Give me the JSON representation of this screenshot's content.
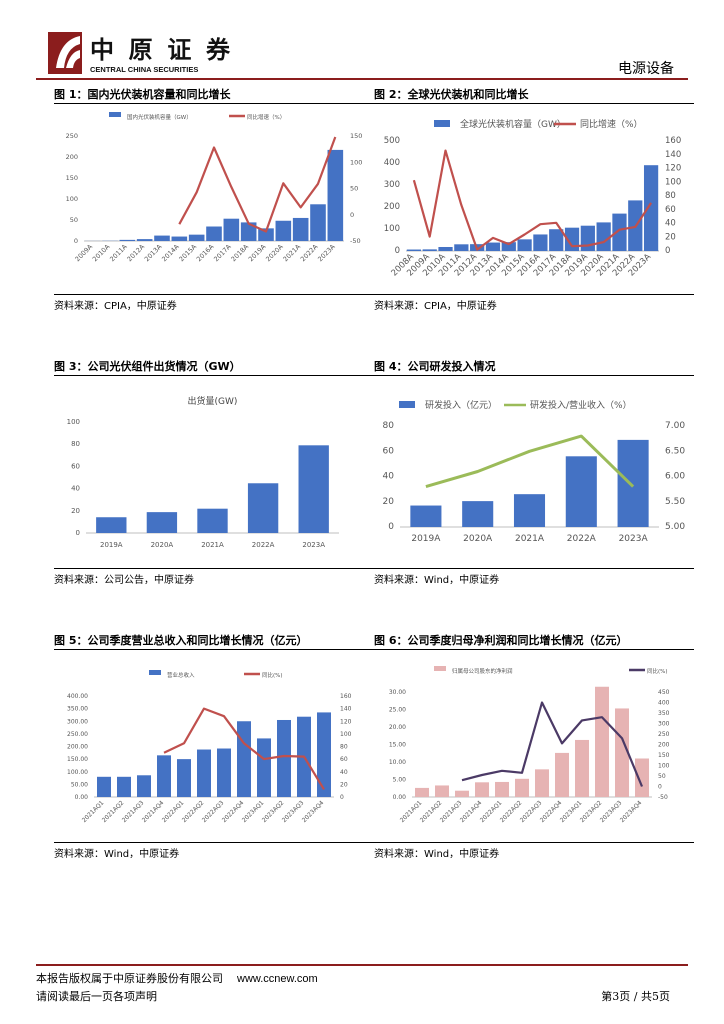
{
  "header": {
    "company_cn": "中原证券",
    "company_en": "CENTRAL CHINA SECURITIES",
    "sector": "电源设备"
  },
  "colors": {
    "brand": "#8b1d1d",
    "bar": "#4472c4",
    "line": "#c0504d",
    "green": "#9bbb59",
    "pink": "#e6b3b3",
    "purple": "#4b3a66"
  },
  "footer": {
    "copyright": "本报告版权属于中原证券股份有限公司",
    "url": "www.ccnew.com",
    "disclaimer": "请阅读最后一页各项声明",
    "page": "第3页 / 共5页"
  },
  "figures": [
    {
      "title": "图 1：国内光伏装机容量和同比增长",
      "source": "资料来源：CPIA，中原证券"
    },
    {
      "title": "图 2：全球光伏装机和同比增长",
      "source": "资料来源：CPIA，中原证券"
    },
    {
      "title": "图 3：公司光伏组件出货情况（GW）",
      "source": "资料来源：公司公告，中原证券"
    },
    {
      "title": "图 4：公司研发投入情况",
      "source": "资料来源：Wind，中原证券"
    },
    {
      "title": "图 5：公司季度营业总收入和同比增长情况（亿元）",
      "source": "资料来源：Wind，中原证券"
    },
    {
      "title": "图 6：公司季度归母净利润和同比增长情况（亿元）",
      "source": "资料来源：Wind，中原证券"
    }
  ],
  "chart_data": [
    {
      "type": "bar+line",
      "title": "",
      "legend": [
        "国内光伏装机容量（GW）",
        "同比增速（%）"
      ],
      "categories": [
        "2009A",
        "2010A",
        "2011A",
        "2012A",
        "2013A",
        "2014A",
        "2015A",
        "2016A",
        "2017A",
        "2018A",
        "2019A",
        "2020A",
        "2021A",
        "2022A",
        "2023A"
      ],
      "series": [
        {
          "name": "国内光伏装机容量（GW）",
          "axis": "left",
          "values": [
            0.2,
            0.5,
            2.7,
            4.5,
            12.9,
            10.6,
            15.1,
            34.5,
            53.1,
            44.3,
            30.1,
            48.2,
            54.9,
            87.4,
            216.9
          ]
        },
        {
          "name": "同比增速（%）",
          "axis": "right",
          "values": [
            null,
            null,
            null,
            null,
            null,
            -18,
            43,
            128,
            53,
            -17,
            -32,
            60,
            14,
            59,
            148
          ]
        }
      ],
      "ylim_left": [
        0,
        250
      ],
      "yticks_left": [
        0,
        50,
        100,
        150,
        200,
        250
      ],
      "ylim_right": [
        -50,
        150
      ],
      "yticks_right": [
        "-50",
        "0",
        "50",
        "100",
        "150"
      ]
    },
    {
      "type": "bar+line",
      "legend": [
        "全球光伏装机容量（GW）",
        "同比增速（%）"
      ],
      "categories": [
        "2008A",
        "2009A",
        "2010A",
        "2011A",
        "2012A",
        "2013A",
        "2014A",
        "2015A",
        "2016A",
        "2017A",
        "2018A",
        "2019A",
        "2020A",
        "2021A",
        "2022A",
        "2023A"
      ],
      "series": [
        {
          "name": "全球光伏装机容量（GW）",
          "axis": "left",
          "values": [
            6.7,
            7.4,
            18.2,
            30.4,
            31.1,
            38.4,
            40.1,
            53,
            75.2,
            99,
            106,
            115,
            130,
            170,
            230,
            390
          ]
        },
        {
          "name": "同比增速（%）",
          "axis": "right",
          "values": [
            103,
            21,
            146,
            67,
            2,
            19,
            10,
            24,
            39,
            41,
            7,
            8,
            13,
            31,
            35,
            70
          ]
        }
      ],
      "ylim_left": [
        0,
        500
      ],
      "yticks_left": [
        0,
        100,
        200,
        300,
        400,
        500
      ],
      "ylim_right": [
        0,
        160
      ],
      "yticks_right": [
        "0",
        "20",
        "40",
        "60",
        "80",
        "100",
        "120",
        "140",
        "160"
      ]
    },
    {
      "type": "bar",
      "title": "出货量(GW)",
      "categories": [
        "2019A",
        "2020A",
        "2021A",
        "2022A",
        "2023A"
      ],
      "values": [
        14.2,
        18.8,
        21.9,
        44.8,
        79
      ],
      "ylim": [
        0,
        100
      ],
      "yticks": [
        0,
        20,
        40,
        60,
        80,
        100
      ]
    },
    {
      "type": "bar+line",
      "legend": [
        "研发投入（亿元）",
        "研发投入/营业收入（%）"
      ],
      "categories": [
        "2019A",
        "2020A",
        "2021A",
        "2022A",
        "2023A"
      ],
      "series": [
        {
          "name": "研发投入（亿元）",
          "axis": "left",
          "values": [
            17,
            20.5,
            26,
            56,
            69
          ]
        },
        {
          "name": "研发投入/营业收入（%）",
          "axis": "right",
          "values": [
            5.8,
            6.1,
            6.5,
            6.8,
            5.8
          ]
        }
      ],
      "ylim_left": [
        0,
        80
      ],
      "yticks_left": [
        "0",
        "20",
        "40",
        "60",
        "80"
      ],
      "ylim_right": [
        5,
        7
      ],
      "yticks_right": [
        "5.00",
        "5.50",
        "6.00",
        "6.50",
        "7.00"
      ]
    },
    {
      "type": "bar+line",
      "legend": [
        "营业总收入",
        "同比(%)"
      ],
      "categories": [
        "2021AQ1",
        "2021AQ2",
        "2021AQ3",
        "2021AQ4",
        "2022AQ1",
        "2022AQ2",
        "2022AQ3",
        "2022AQ4",
        "2023AQ1",
        "2023AQ2",
        "2023AQ3",
        "2023AQ4"
      ],
      "series": [
        {
          "name": "营业总收入",
          "axis": "left",
          "values": [
            80,
            80,
            86,
            165,
            150,
            188,
            192,
            300,
            232,
            305,
            318,
            335
          ]
        },
        {
          "name": "同比(%)",
          "axis": "right",
          "values": [
            null,
            null,
            null,
            70,
            85,
            140,
            128,
            85,
            60,
            65,
            64,
            12
          ]
        }
      ],
      "ylim_left": [
        0,
        400
      ],
      "yticks_left": [
        "0.00",
        "50.00",
        "100.00",
        "150.00",
        "200.00",
        "250.00",
        "300.00",
        "350.00",
        "400.00"
      ],
      "ylim_right": [
        0,
        160
      ],
      "yticks_right": [
        "0",
        "20",
        "40",
        "60",
        "80",
        "100",
        "120",
        "140",
        "160"
      ]
    },
    {
      "type": "bar+line",
      "legend": [
        "归属母公司股东的净利润",
        "同比(%)"
      ],
      "categories": [
        "2021AQ1",
        "2021AQ2",
        "2021AQ3",
        "2021AQ4",
        "2022AQ1",
        "2022AQ2",
        "2022AQ3",
        "2022AQ4",
        "2023AQ1",
        "2023AQ2",
        "2023AQ3",
        "2023AQ4"
      ],
      "series": [
        {
          "name": "归属母公司股东的净利润",
          "axis": "left",
          "values": [
            2.6,
            3.3,
            1.8,
            4.2,
            4.3,
            5.2,
            7.9,
            12.6,
            16.3,
            31.5,
            25.3,
            11
          ]
        },
        {
          "name": "同比(%)",
          "axis": "right",
          "values": [
            null,
            null,
            30,
            55,
            75,
            65,
            400,
            205,
            315,
            330,
            230,
            0
          ]
        }
      ],
      "ylim_left": [
        0,
        30
      ],
      "yticks_left": [
        "0.00",
        "5.00",
        "10.00",
        "15.00",
        "20.00",
        "25.00",
        "30.00"
      ],
      "ylim_right": [
        -50,
        450
      ],
      "yticks_right": [
        "-50",
        "0",
        "50",
        "100",
        "150",
        "200",
        "250",
        "300",
        "350",
        "400",
        "450"
      ]
    }
  ]
}
